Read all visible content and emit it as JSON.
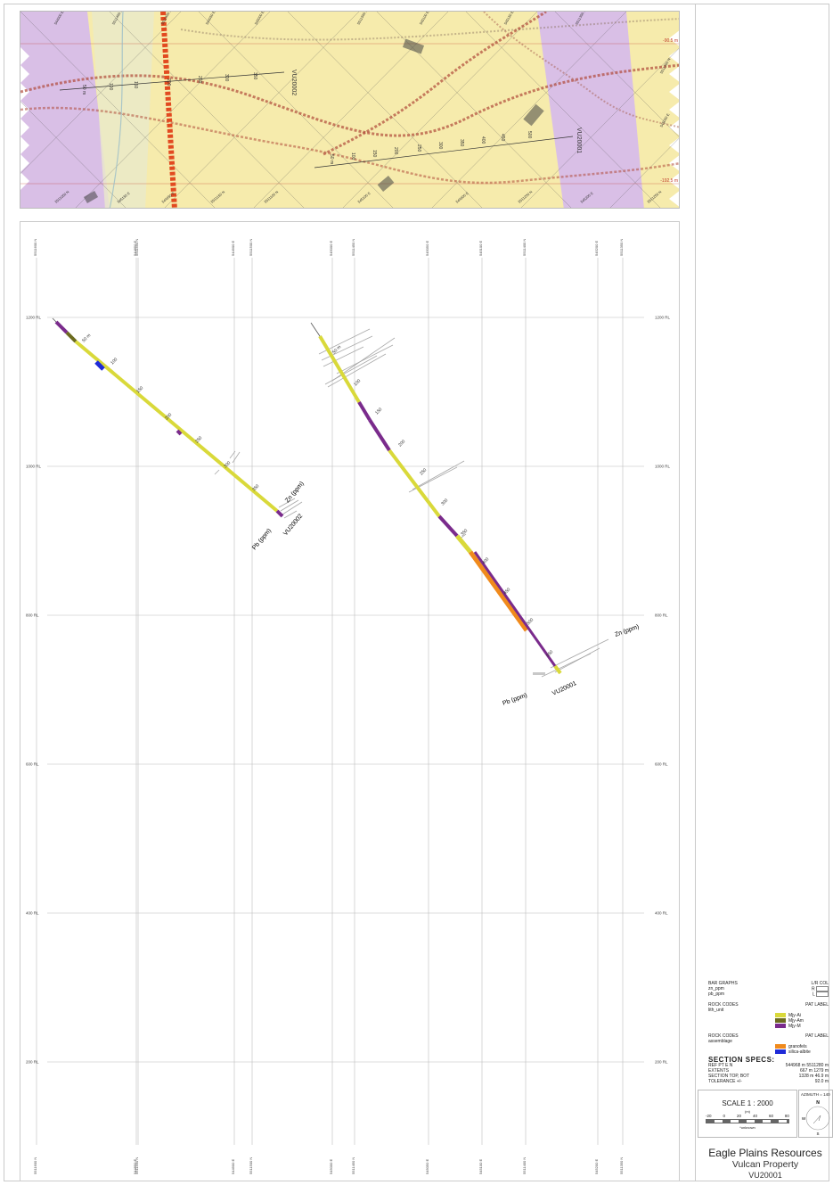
{
  "plan_view": {
    "grid_labels": [
      "544900 E",
      "5511400 N",
      "5511450 N",
      "544950 E",
      "545000 E",
      "5511500 N",
      "545100 E",
      "545150 E",
      "5511350 N",
      "5511300 N",
      "545050 E",
      "5511050 N",
      "545150 E",
      "544950 E",
      "5511150 N",
      "5511100 N",
      "545100 E",
      "544900 E",
      "5511200 N",
      "545200 E",
      "5511250 N"
    ],
    "rl_labels": [
      "-90.5 m",
      "-192.5 m"
    ],
    "holes": [
      {
        "id": "VU20002",
        "depths": [
          "50 m",
          "100",
          "150",
          "200",
          "250",
          "300",
          "350"
        ]
      },
      {
        "id": "VU20001",
        "depths": [
          "50 m",
          "100",
          "150",
          "200",
          "250",
          "300",
          "350",
          "400",
          "450",
          "500"
        ]
      }
    ]
  },
  "section": {
    "top_labels": [
      "5511600 N",
      "544850 E",
      "5511550 N",
      "544900 E",
      "5511500 N",
      "545000 E",
      "5511450 N",
      "545050 E",
      "545100 E",
      "5511400 N",
      "545200 E",
      "5511350 N"
    ],
    "bottom_labels": [
      "5511600 N",
      "544850 E",
      "5511550 N",
      "544900 E",
      "5511500 N",
      "545000 E",
      "5511450 N",
      "545050 E",
      "545100 E",
      "5511400 N",
      "545200 E",
      "5511350 N"
    ],
    "rl_levels": [
      "1200 RL",
      "1000 RL",
      "800 RL",
      "600 RL",
      "400 RL",
      "200 RL"
    ],
    "holes": [
      {
        "id": "VU20002",
        "pb_label": "Pb (ppm)",
        "zn_label": "Zn (ppm)",
        "depths": [
          "50 m",
          "100",
          "150",
          "200",
          "250",
          "300",
          "350"
        ]
      },
      {
        "id": "VU20001",
        "pb_label": "Pb (ppm)",
        "zn_label": "Zn (ppm)",
        "depths": [
          "50 m",
          "100",
          "150",
          "200",
          "250",
          "300",
          "350",
          "400",
          "450",
          "500",
          "550"
        ]
      }
    ]
  },
  "legend": {
    "bar_graphs_title": "BAR GRAPHS",
    "bar_graphs_cols": "L/R  COL",
    "bar_graphs": [
      {
        "name": "zn_ppm",
        "side": "R"
      },
      {
        "name": "pb_ppm",
        "side": "L"
      }
    ],
    "rock_codes_1_title": "ROCK CODES",
    "rock_codes_1_sub": "lith_unit",
    "rock_codes_cols": "PAT  LABEL",
    "rock_codes_1": [
      {
        "label": "Mjy-Ai",
        "color": "#d9d93a"
      },
      {
        "label": "Mjy-Am",
        "color": "#6b6b1f"
      },
      {
        "label": "Mjy-M",
        "color": "#7a2b8c"
      }
    ],
    "rock_codes_2_title": "ROCK CODES",
    "rock_codes_2_sub": "assemblage",
    "rock_codes_2": [
      {
        "label": "granofels",
        "color": "#f08a1c"
      },
      {
        "label": "silica-albite",
        "color": "#1f2bd8"
      }
    ],
    "specs_title": "SECTION  SPECS:",
    "specs": [
      {
        "k": "REF PT E N",
        "v": "544968 m 5511280 m"
      },
      {
        "k": "EXTENTS",
        "v": "667 m   1279 m"
      },
      {
        "k": "SECTION TOP, BOT",
        "v": "1328 m   46.9 m"
      },
      {
        "k": "TOLERANCE +/-",
        "v": "92.0 m"
      }
    ]
  },
  "scale": {
    "title": "SCALE  1 : 2000",
    "units": "(m)",
    "ticks": [
      "-20",
      "0",
      "20",
      "40",
      "60",
      "80"
    ],
    "note": "*unknown"
  },
  "azimuth": {
    "label": "AZIMUTH = 140",
    "n": "N",
    "w": "W",
    "s": "S"
  },
  "title_block": {
    "company": "Eagle Plains Resources",
    "property": "Vulcan Property",
    "hole": "VU20001"
  },
  "colors": {
    "yellow": "#d9d93a",
    "purple": "#7a2b8c",
    "orange": "#f08a1c",
    "blue": "#1f2bd8",
    "plan_bg": "#f6ebac",
    "plan_purple": "#d9bfe6"
  }
}
